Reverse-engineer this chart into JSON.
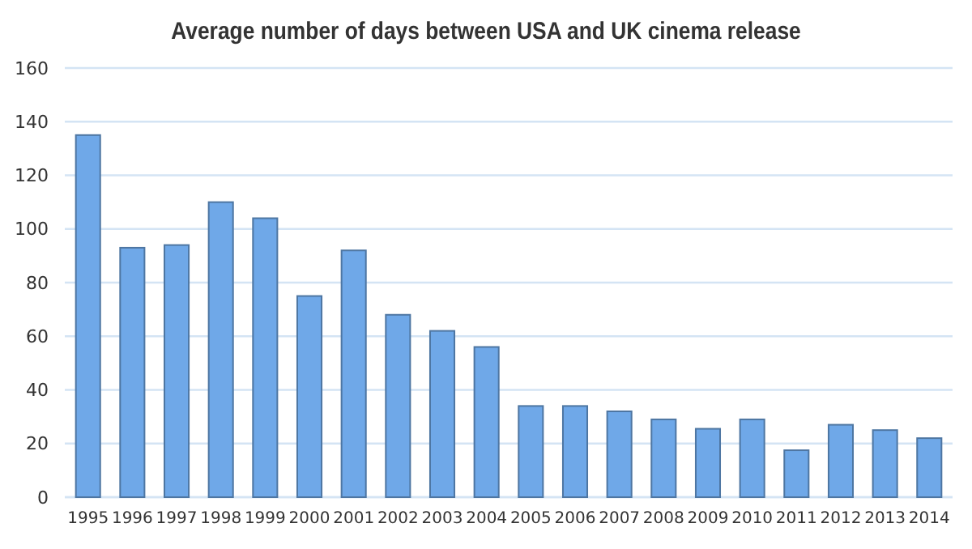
{
  "chart_data": {
    "type": "bar",
    "title": "Average number of days between USA and UK cinema release",
    "categories": [
      "1995",
      "1996",
      "1997",
      "1998",
      "1999",
      "2000",
      "2001",
      "2002",
      "2003",
      "2004",
      "2005",
      "2006",
      "2007",
      "2008",
      "2009",
      "2010",
      "2011",
      "2012",
      "2013",
      "2014"
    ],
    "values": [
      135,
      93,
      94,
      110,
      104,
      75,
      92,
      68,
      62,
      56,
      34,
      34,
      32,
      29,
      25.5,
      29,
      17.5,
      27,
      25,
      22
    ],
    "color": "#6fa8e8",
    "ylim": [
      0,
      160
    ],
    "yticks": [
      0,
      20,
      40,
      60,
      80,
      100,
      120,
      140,
      160
    ],
    "grid": "y"
  }
}
